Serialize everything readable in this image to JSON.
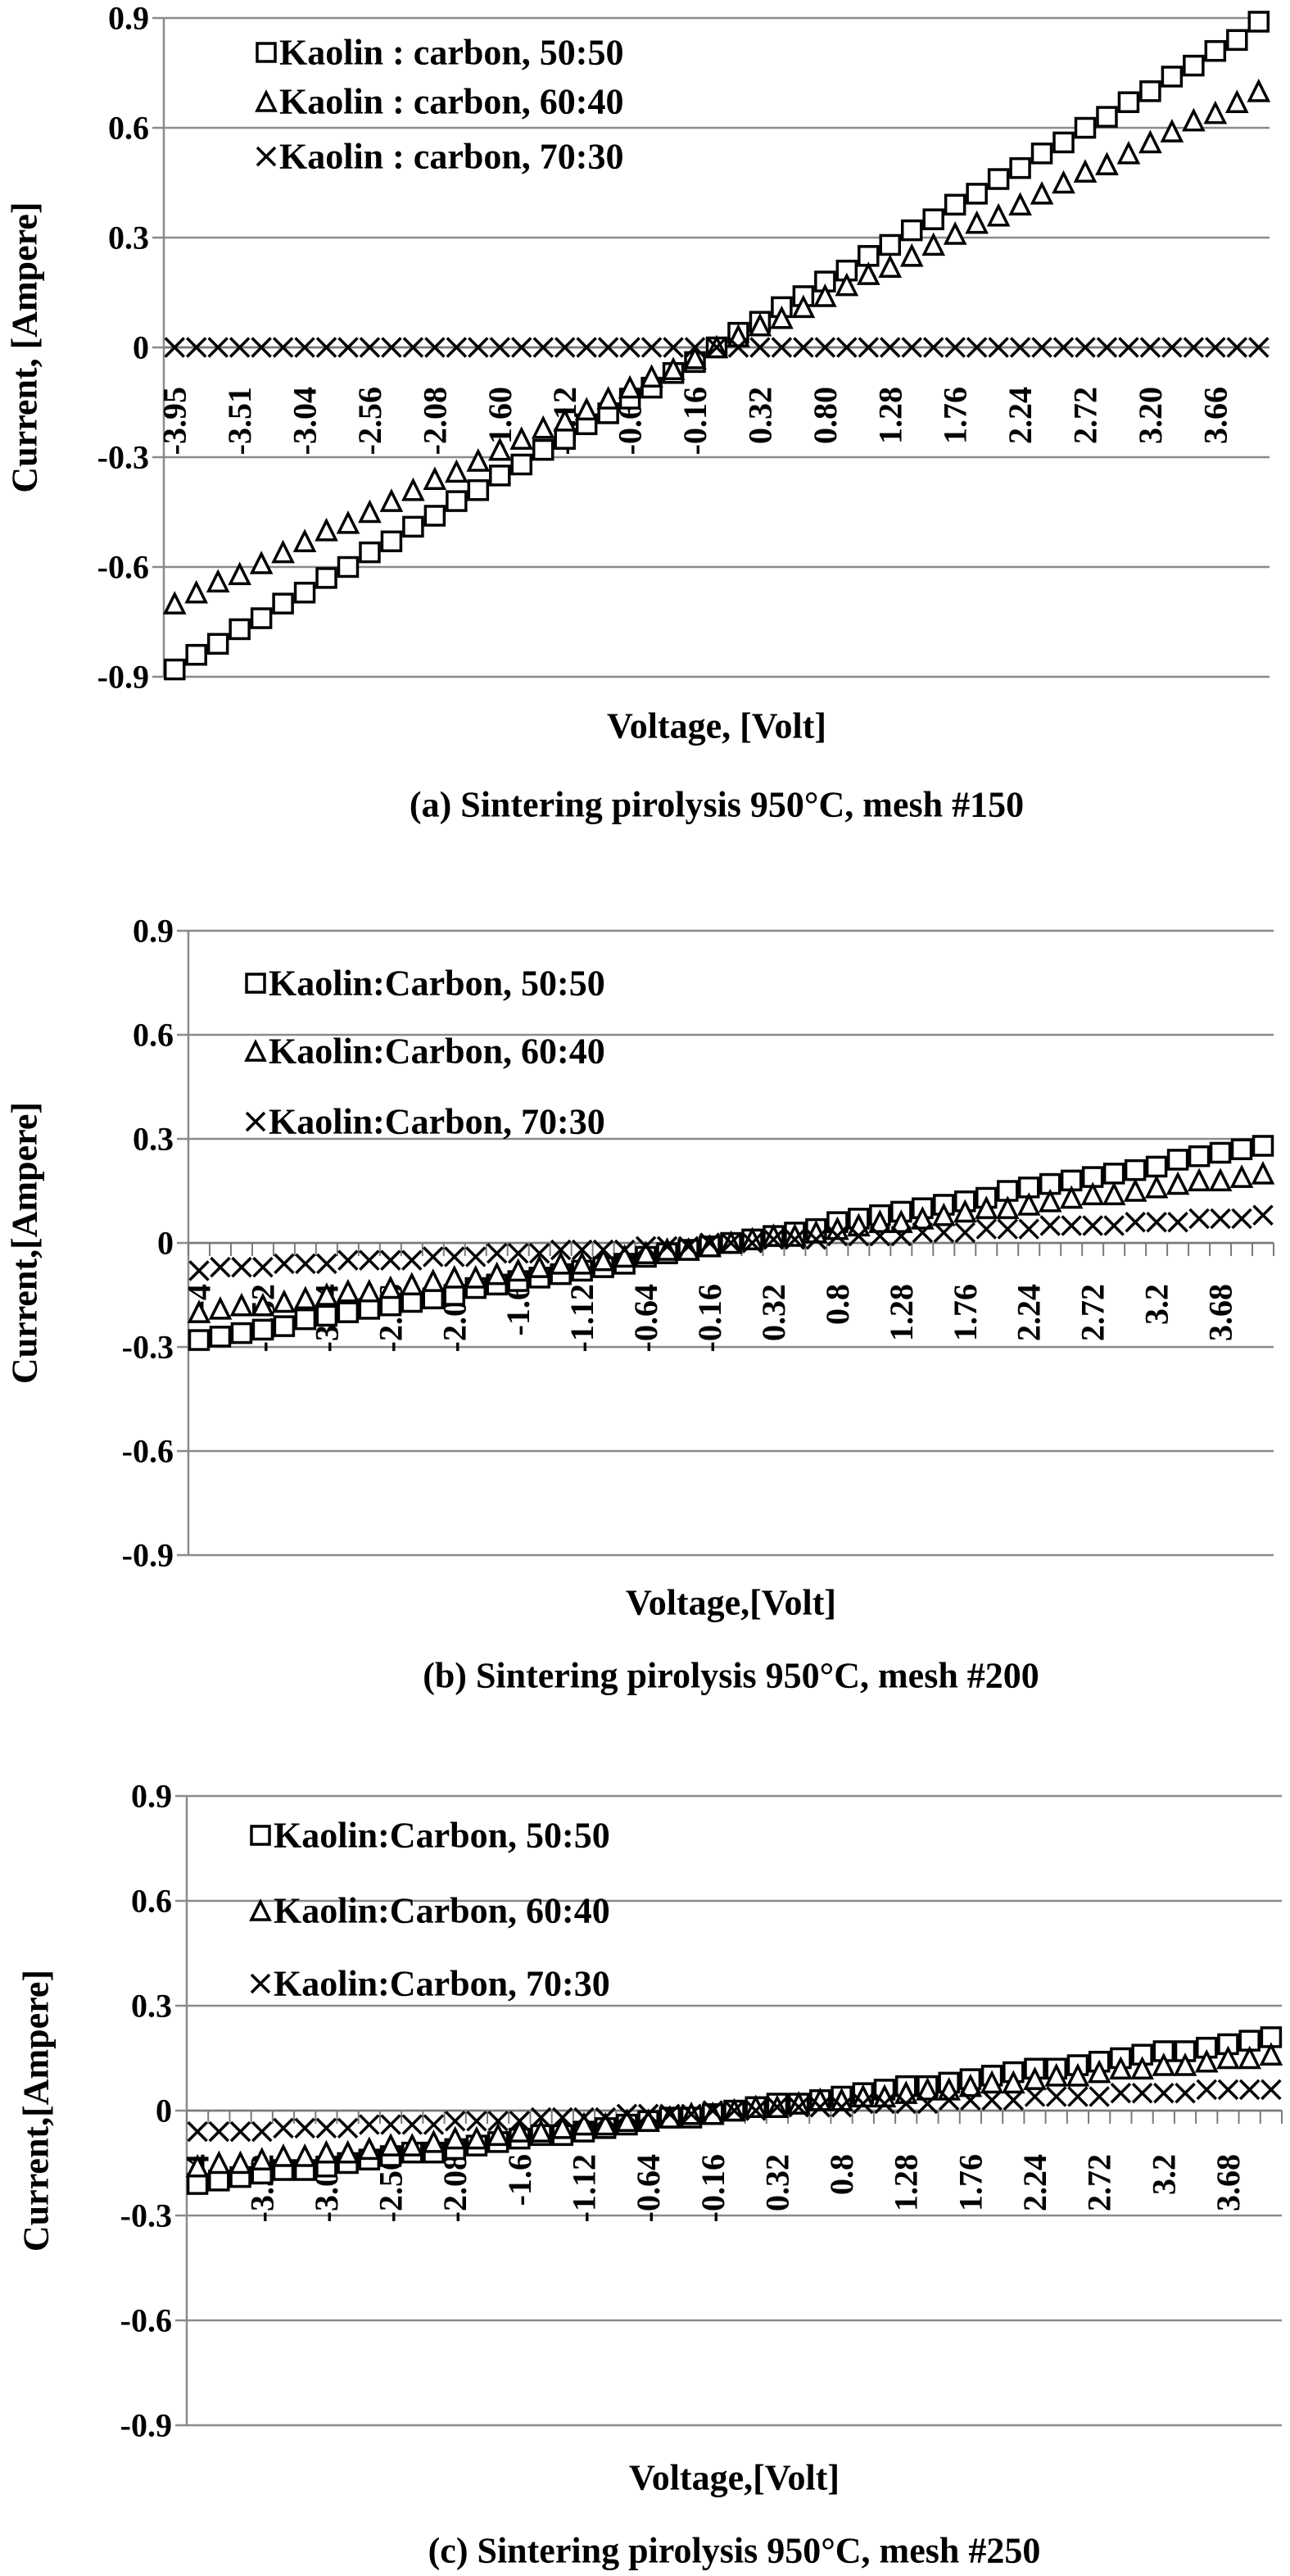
{
  "chart_data": [
    {
      "type": "scatter",
      "panel": "a",
      "caption": "(a) Sintering pirolysis 950°C, mesh #150",
      "xlabel": "Voltage, [Volt]",
      "ylabel": "Current, [Ampere]",
      "ylim": [
        -0.9,
        0.9
      ],
      "yticks": [
        "0.9",
        "0.6",
        "0.3",
        "0",
        "-0.3",
        "-0.6",
        "-0.9"
      ],
      "ytick_values": [
        0.9,
        0.6,
        0.3,
        0,
        -0.3,
        -0.6,
        -0.9
      ],
      "grid": true,
      "legend_position": "top-left",
      "x_tick_labels": [
        "-3.95",
        "-3.51",
        "-3.04",
        "-2.56",
        "-2.08",
        "-1.60",
        "-1.12",
        "-0.64",
        "-0.16",
        "0.32",
        "0.80",
        "1.28",
        "1.76",
        "2.24",
        "2.72",
        "3.20",
        "3.66"
      ],
      "x": [
        -4,
        -3.84,
        -3.68,
        -3.52,
        -3.36,
        -3.2,
        -3.04,
        -2.88,
        -2.72,
        -2.56,
        -2.4,
        -2.24,
        -2.08,
        -1.92,
        -1.76,
        -1.6,
        -1.44,
        -1.28,
        -1.12,
        -0.96,
        -0.8,
        -0.64,
        -0.48,
        -0.32,
        -0.16,
        0,
        0.16,
        0.32,
        0.48,
        0.64,
        0.8,
        0.96,
        1.12,
        1.28,
        1.44,
        1.6,
        1.76,
        1.92,
        2.08,
        2.24,
        2.4,
        2.56,
        2.72,
        2.88,
        3.04,
        3.2,
        3.36,
        3.52,
        3.68,
        3.84,
        4
      ],
      "series": [
        {
          "name": "Kaolin : carbon, 50:50",
          "marker": "square",
          "values": [
            -0.88,
            -0.84,
            -0.81,
            -0.77,
            -0.74,
            -0.7,
            -0.67,
            -0.63,
            -0.6,
            -0.56,
            -0.53,
            -0.49,
            -0.46,
            -0.42,
            -0.39,
            -0.35,
            -0.32,
            -0.28,
            -0.25,
            -0.21,
            -0.18,
            -0.14,
            -0.11,
            -0.07,
            -0.04,
            0,
            0.04,
            0.07,
            0.11,
            0.14,
            0.18,
            0.21,
            0.25,
            0.28,
            0.32,
            0.35,
            0.39,
            0.42,
            0.46,
            0.49,
            0.53,
            0.56,
            0.6,
            0.63,
            0.67,
            0.7,
            0.74,
            0.77,
            0.81,
            0.84,
            0.89
          ]
        },
        {
          "name": "Kaolin : carbon, 60:40",
          "marker": "triangle",
          "values": [
            -0.7,
            -0.67,
            -0.64,
            -0.62,
            -0.59,
            -0.56,
            -0.53,
            -0.5,
            -0.48,
            -0.45,
            -0.42,
            -0.39,
            -0.36,
            -0.34,
            -0.31,
            -0.28,
            -0.25,
            -0.22,
            -0.2,
            -0.17,
            -0.14,
            -0.11,
            -0.08,
            -0.06,
            -0.03,
            0,
            0.03,
            0.06,
            0.08,
            0.11,
            0.14,
            0.17,
            0.2,
            0.22,
            0.25,
            0.28,
            0.31,
            0.34,
            0.36,
            0.39,
            0.42,
            0.45,
            0.48,
            0.5,
            0.53,
            0.56,
            0.59,
            0.62,
            0.64,
            0.67,
            0.7
          ]
        },
        {
          "name": "Kaolin : carbon, 70:30",
          "marker": "cross",
          "values": [
            0,
            0,
            0,
            0,
            0,
            0,
            0,
            0,
            0,
            0,
            0,
            0,
            0,
            0,
            0,
            0,
            0,
            0,
            0,
            0,
            0,
            0,
            0,
            0,
            0,
            0,
            0,
            0,
            0,
            0,
            0,
            0,
            0,
            0,
            0,
            0,
            0,
            0,
            0,
            0,
            0,
            0,
            0,
            0,
            0,
            0,
            0,
            0,
            0,
            0,
            0
          ]
        }
      ]
    },
    {
      "type": "scatter",
      "panel": "b",
      "caption": "(b) Sintering pirolysis 950°C, mesh #200",
      "xlabel": "Voltage,[Volt]",
      "ylabel": "Current,[Ampere]",
      "ylim": [
        -0.9,
        0.9
      ],
      "yticks": [
        "0.9",
        "0.6",
        "0.3",
        "0",
        "-0.3",
        "-0.6",
        "-0.9"
      ],
      "ytick_values": [
        0.9,
        0.6,
        0.3,
        0,
        -0.3,
        -0.6,
        -0.9
      ],
      "grid": true,
      "legend_position": "top-left",
      "x_tick_labels": [
        "-4",
        "-3.52",
        "-3.04",
        "-2.56",
        "-2.08",
        "-1.6",
        "-1.12",
        "-0.64",
        "-0.16",
        "0.32",
        "0.8",
        "1.28",
        "1.76",
        "2.24",
        "2.72",
        "3.2",
        "3.68"
      ],
      "x": [
        -4,
        -3.84,
        -3.68,
        -3.52,
        -3.36,
        -3.2,
        -3.04,
        -2.88,
        -2.72,
        -2.56,
        -2.4,
        -2.24,
        -2.08,
        -1.92,
        -1.76,
        -1.6,
        -1.44,
        -1.28,
        -1.12,
        -0.96,
        -0.8,
        -0.64,
        -0.48,
        -0.32,
        -0.16,
        0,
        0.16,
        0.32,
        0.48,
        0.64,
        0.8,
        0.96,
        1.12,
        1.28,
        1.44,
        1.6,
        1.76,
        1.92,
        2.08,
        2.24,
        2.4,
        2.56,
        2.72,
        2.88,
        3.04,
        3.2,
        3.36,
        3.52,
        3.68,
        3.84,
        4
      ],
      "series": [
        {
          "name": "Kaolin:Carbon, 50:50",
          "marker": "square",
          "values": [
            -0.28,
            -0.27,
            -0.26,
            -0.25,
            -0.24,
            -0.22,
            -0.21,
            -0.2,
            -0.19,
            -0.18,
            -0.17,
            -0.16,
            -0.15,
            -0.13,
            -0.12,
            -0.11,
            -0.1,
            -0.09,
            -0.08,
            -0.07,
            -0.06,
            -0.04,
            -0.03,
            -0.02,
            -0.01,
            0,
            0.01,
            0.02,
            0.03,
            0.04,
            0.06,
            0.07,
            0.08,
            0.09,
            0.1,
            0.11,
            0.12,
            0.13,
            0.15,
            0.16,
            0.17,
            0.18,
            0.19,
            0.2,
            0.21,
            0.22,
            0.24,
            0.25,
            0.26,
            0.27,
            0.28
          ]
        },
        {
          "name": "Kaolin:Carbon, 60:40",
          "marker": "triangle",
          "values": [
            -0.2,
            -0.19,
            -0.18,
            -0.18,
            -0.17,
            -0.16,
            -0.15,
            -0.14,
            -0.14,
            -0.13,
            -0.12,
            -0.11,
            -0.1,
            -0.1,
            -0.09,
            -0.08,
            -0.07,
            -0.06,
            -0.06,
            -0.05,
            -0.04,
            -0.03,
            -0.02,
            -0.02,
            -0.01,
            0,
            0.01,
            0.02,
            0.02,
            0.03,
            0.04,
            0.05,
            0.06,
            0.06,
            0.07,
            0.08,
            0.09,
            0.1,
            0.1,
            0.11,
            0.12,
            0.13,
            0.14,
            0.14,
            0.15,
            0.16,
            0.17,
            0.18,
            0.18,
            0.19,
            0.2
          ]
        },
        {
          "name": "Kaolin:Carbon, 70:30",
          "marker": "cross",
          "values": [
            -0.08,
            -0.07,
            -0.07,
            -0.07,
            -0.06,
            -0.06,
            -0.06,
            -0.05,
            -0.05,
            -0.05,
            -0.05,
            -0.04,
            -0.04,
            -0.04,
            -0.03,
            -0.03,
            -0.03,
            -0.02,
            -0.02,
            -0.02,
            -0.02,
            -0.01,
            -0.01,
            -0.01,
            0,
            0,
            0,
            0.01,
            0.01,
            0.01,
            0.02,
            0.02,
            0.02,
            0.02,
            0.03,
            0.03,
            0.03,
            0.04,
            0.04,
            0.04,
            0.05,
            0.05,
            0.05,
            0.05,
            0.06,
            0.06,
            0.06,
            0.07,
            0.07,
            0.07,
            0.08
          ]
        }
      ]
    },
    {
      "type": "scatter",
      "panel": "c",
      "caption": "(c) Sintering pirolysis 950°C, mesh #250",
      "xlabel": "Voltage,[Volt]",
      "ylabel": "Current,[Ampere]",
      "ylim": [
        -0.9,
        0.9
      ],
      "yticks": [
        "0.9",
        "0.6",
        "0.3",
        "0",
        "-0.3",
        "-0.6",
        "-0.9"
      ],
      "ytick_values": [
        0.9,
        0.6,
        0.3,
        0,
        -0.3,
        -0.6,
        -0.9
      ],
      "grid": true,
      "legend_position": "top-left",
      "x_tick_labels": [
        "-4",
        "-3.52",
        "-3.04",
        "-2.56",
        "-2.08",
        "-1.6",
        "-1.12",
        "-0.64",
        "-0.16",
        "0.32",
        "0.8",
        "1.28",
        "1.76",
        "2.24",
        "2.72",
        "3.2",
        "3.68"
      ],
      "x": [
        -4,
        -3.84,
        -3.68,
        -3.52,
        -3.36,
        -3.2,
        -3.04,
        -2.88,
        -2.72,
        -2.56,
        -2.4,
        -2.24,
        -2.08,
        -1.92,
        -1.76,
        -1.6,
        -1.44,
        -1.28,
        -1.12,
        -0.96,
        -0.8,
        -0.64,
        -0.48,
        -0.32,
        -0.16,
        0,
        0.16,
        0.32,
        0.48,
        0.64,
        0.8,
        0.96,
        1.12,
        1.28,
        1.44,
        1.6,
        1.76,
        1.92,
        2.08,
        2.24,
        2.4,
        2.56,
        2.72,
        2.88,
        3.04,
        3.2,
        3.36,
        3.52,
        3.68,
        3.84,
        4
      ],
      "series": [
        {
          "name": "Kaolin:Carbon, 50:50",
          "marker": "square",
          "values": [
            -0.21,
            -0.2,
            -0.19,
            -0.18,
            -0.17,
            -0.17,
            -0.16,
            -0.15,
            -0.14,
            -0.13,
            -0.12,
            -0.12,
            -0.11,
            -0.1,
            -0.09,
            -0.08,
            -0.07,
            -0.07,
            -0.06,
            -0.05,
            -0.04,
            -0.03,
            -0.02,
            -0.02,
            -0.01,
            0,
            0.01,
            0.02,
            0.02,
            0.03,
            0.04,
            0.05,
            0.06,
            0.07,
            0.07,
            0.08,
            0.09,
            0.1,
            0.11,
            0.12,
            0.12,
            0.13,
            0.14,
            0.15,
            0.16,
            0.17,
            0.17,
            0.18,
            0.19,
            0.2,
            0.21
          ]
        },
        {
          "name": "Kaolin:Carbon, 60:40",
          "marker": "triangle",
          "values": [
            -0.16,
            -0.15,
            -0.15,
            -0.14,
            -0.13,
            -0.13,
            -0.12,
            -0.12,
            -0.11,
            -0.1,
            -0.1,
            -0.09,
            -0.08,
            -0.08,
            -0.07,
            -0.06,
            -0.06,
            -0.05,
            -0.04,
            -0.04,
            -0.03,
            -0.03,
            -0.02,
            -0.01,
            -0.01,
            0,
            0.01,
            0.01,
            0.02,
            0.03,
            0.03,
            0.04,
            0.04,
            0.05,
            0.06,
            0.06,
            0.07,
            0.08,
            0.08,
            0.09,
            0.1,
            0.1,
            0.11,
            0.12,
            0.12,
            0.13,
            0.13,
            0.14,
            0.15,
            0.15,
            0.16
          ]
        },
        {
          "name": "Kaolin:Carbon, 70:30",
          "marker": "cross",
          "values": [
            -0.06,
            -0.06,
            -0.06,
            -0.06,
            -0.05,
            -0.05,
            -0.05,
            -0.05,
            -0.04,
            -0.04,
            -0.04,
            -0.04,
            -0.03,
            -0.03,
            -0.03,
            -0.03,
            -0.02,
            -0.02,
            -0.02,
            -0.02,
            -0.01,
            -0.01,
            -0.01,
            -0.01,
            0,
            0,
            0,
            0.01,
            0.01,
            0.01,
            0.01,
            0.02,
            0.02,
            0.02,
            0.02,
            0.03,
            0.03,
            0.03,
            0.03,
            0.04,
            0.04,
            0.04,
            0.04,
            0.05,
            0.05,
            0.05,
            0.05,
            0.06,
            0.06,
            0.06,
            0.06
          ]
        }
      ]
    }
  ]
}
